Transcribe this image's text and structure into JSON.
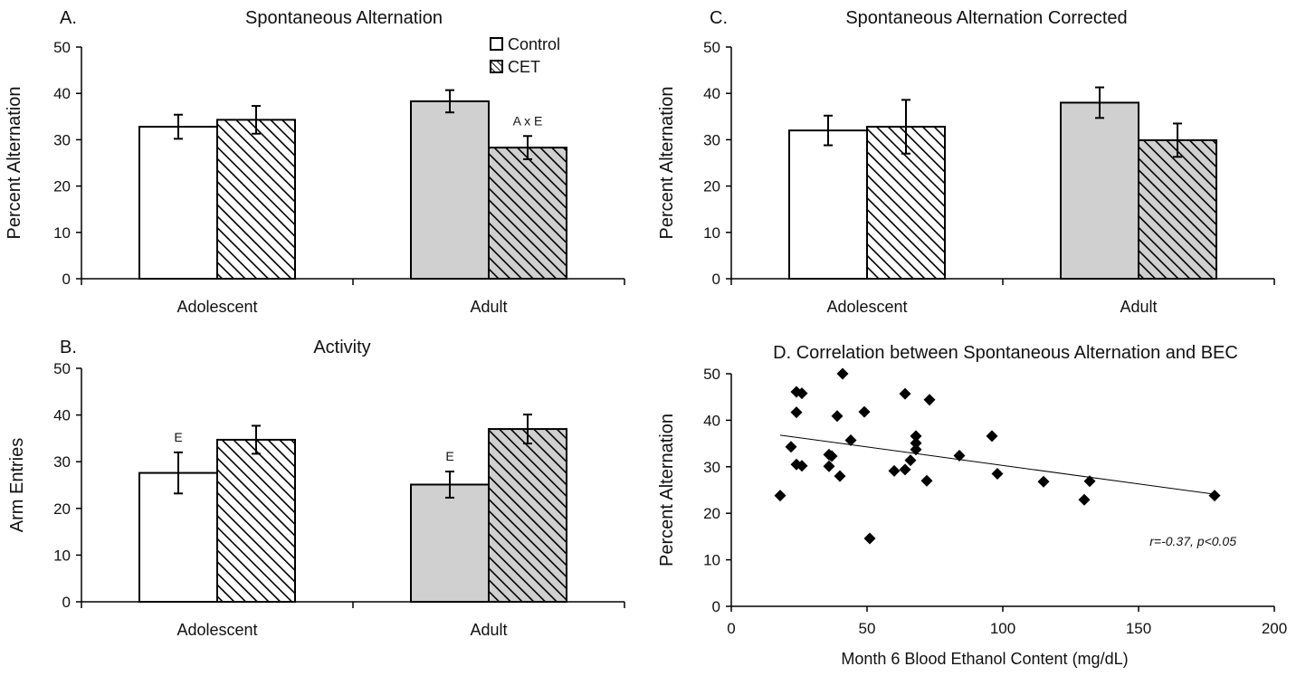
{
  "legend": {
    "items": [
      {
        "label": "Control",
        "pattern": "solid"
      },
      {
        "label": "CET",
        "pattern": "hatch"
      }
    ]
  },
  "colors": {
    "adolescent_fill": "#ffffff",
    "adult_fill": "#d0d0d0",
    "stroke": "#000000"
  },
  "chart_data": [
    {
      "id": "A",
      "type": "bar",
      "letter": "A.",
      "title": "Spontaneous Alternation",
      "ylabel": "Percent Alternation",
      "xlabel": "",
      "ylim": [
        0,
        50
      ],
      "yticks": [
        0,
        10,
        20,
        30,
        40,
        50
      ],
      "categories": [
        "Adolescent",
        "Adult"
      ],
      "series": [
        {
          "name": "Control",
          "values": [
            32.8,
            38.3
          ],
          "errors": [
            2.6,
            2.4
          ]
        },
        {
          "name": "CET",
          "values": [
            34.3,
            28.3
          ],
          "errors": [
            3.0,
            2.5
          ]
        }
      ],
      "annotations": [
        {
          "text": "A x E",
          "category": 1,
          "series": 1
        }
      ],
      "legend": "top-right"
    },
    {
      "id": "B",
      "type": "bar",
      "letter": "B.",
      "title": "Activity",
      "ylabel": "Arm Entries",
      "xlabel": "",
      "ylim": [
        0,
        50
      ],
      "yticks": [
        0,
        10,
        20,
        30,
        40,
        50
      ],
      "categories": [
        "Adolescent",
        "Adult"
      ],
      "series": [
        {
          "name": "Control",
          "values": [
            27.6,
            25.1
          ],
          "errors": [
            4.4,
            2.8
          ]
        },
        {
          "name": "CET",
          "values": [
            34.7,
            37.0
          ],
          "errors": [
            3.0,
            3.1
          ]
        }
      ],
      "annotations": [
        {
          "text": "E",
          "category": 0,
          "series": 0
        },
        {
          "text": "E",
          "category": 1,
          "series": 0
        }
      ]
    },
    {
      "id": "C",
      "type": "bar",
      "letter": "C.",
      "title": "Spontaneous Alternation Corrected",
      "ylabel": "Percent Alternation",
      "xlabel": "",
      "ylim": [
        0,
        50
      ],
      "yticks": [
        0,
        10,
        20,
        30,
        40,
        50
      ],
      "categories": [
        "Adolescent",
        "Adult"
      ],
      "series": [
        {
          "name": "Control",
          "values": [
            32.0,
            38.0
          ],
          "errors": [
            3.2,
            3.3
          ]
        },
        {
          "name": "CET",
          "values": [
            32.8,
            29.9
          ],
          "errors": [
            5.8,
            3.6
          ]
        }
      ],
      "annotations": []
    },
    {
      "id": "D",
      "type": "scatter",
      "title": "D. Correlation between Spontaneous Alternation and BEC",
      "ylabel": "Percent Alternation",
      "xlabel": "Month 6 Blood Ethanol Content (mg/dL)",
      "xlim": [
        0,
        200
      ],
      "ylim": [
        0,
        50
      ],
      "xticks": [
        0,
        50,
        100,
        150,
        200
      ],
      "yticks": [
        0,
        10,
        20,
        30,
        40,
        50
      ],
      "points": [
        [
          18,
          23.8
        ],
        [
          22,
          34.3
        ],
        [
          24,
          30.5
        ],
        [
          24,
          41.7
        ],
        [
          24,
          46.1
        ],
        [
          26,
          45.8
        ],
        [
          26,
          30.2
        ],
        [
          36,
          30.1
        ],
        [
          36,
          32.6
        ],
        [
          37,
          32.3
        ],
        [
          39,
          40.9
        ],
        [
          40,
          28.0
        ],
        [
          41,
          50.0
        ],
        [
          44,
          35.7
        ],
        [
          49,
          41.8
        ],
        [
          51,
          14.6
        ],
        [
          60,
          29.1
        ],
        [
          64,
          45.7
        ],
        [
          64,
          29.4
        ],
        [
          66,
          31.4
        ],
        [
          68,
          33.7
        ],
        [
          68,
          36.6
        ],
        [
          68,
          35.1
        ],
        [
          72,
          27.0
        ],
        [
          73,
          44.4
        ],
        [
          84,
          32.4
        ],
        [
          96,
          36.6
        ],
        [
          98,
          28.5
        ],
        [
          115,
          26.8
        ],
        [
          130,
          22.9
        ],
        [
          132,
          26.9
        ],
        [
          178,
          23.8
        ]
      ],
      "trendline": {
        "x": [
          18,
          178
        ],
        "y": [
          36.8,
          24.1
        ]
      },
      "stat_label": "r=-0.37, p<0.05"
    }
  ]
}
